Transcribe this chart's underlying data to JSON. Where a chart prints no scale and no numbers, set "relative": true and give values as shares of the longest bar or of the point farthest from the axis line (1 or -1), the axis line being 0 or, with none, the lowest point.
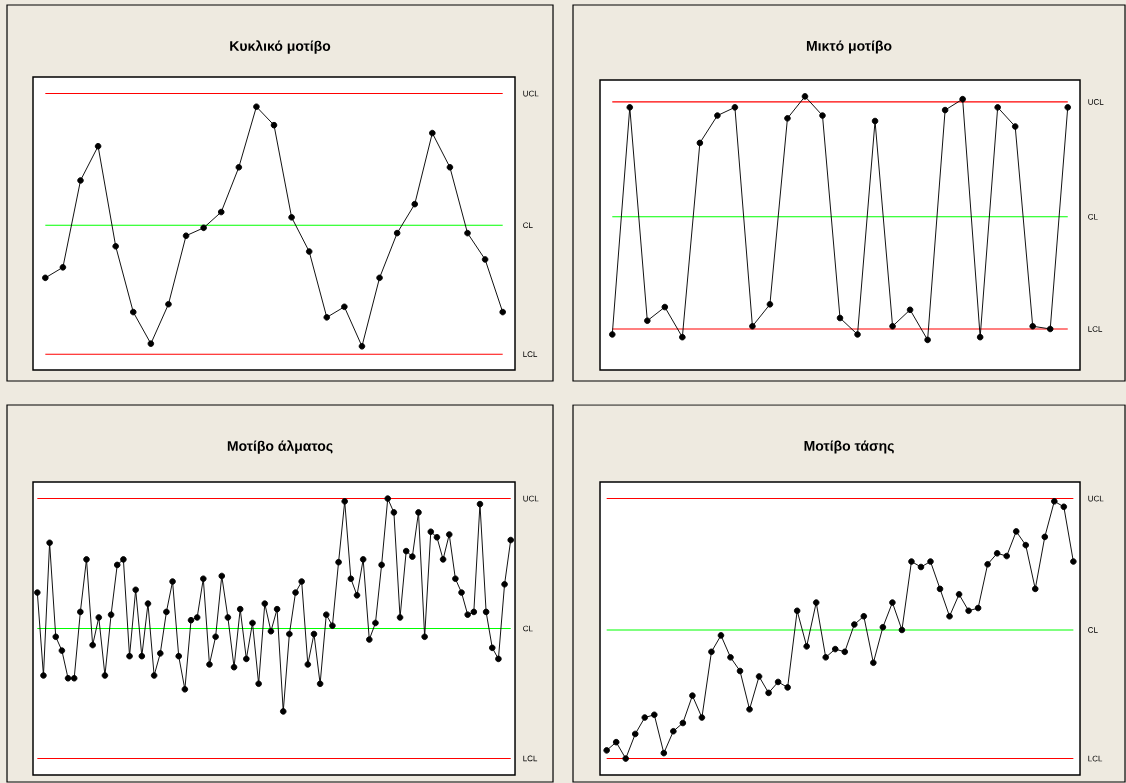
{
  "chart_data": [
    {
      "type": "line",
      "title": "Κυκλικό μοτίβο",
      "relative": true,
      "marker": "circle",
      "color": "#000000",
      "categories": [
        null,
        null,
        null,
        null,
        null,
        null,
        null,
        null,
        null,
        null,
        null,
        null,
        null,
        null,
        null,
        null,
        null,
        null,
        null,
        null,
        null,
        null,
        null,
        null,
        null,
        null,
        null
      ],
      "values": [
        0.35,
        0.39,
        0.72,
        0.85,
        0.47,
        0.22,
        0.1,
        0.25,
        0.51,
        0.54,
        0.6,
        0.77,
        1,
        0.93,
        0.58,
        0.45,
        0.2,
        0.24,
        0.09,
        0.35,
        0.52,
        0.63,
        0.9,
        0.77,
        0.52,
        0.42,
        0.22
      ],
      "ref_lines": [
        {
          "axis": "y",
          "value": 1.05,
          "label": "UCL",
          "color": "#ff0000"
        },
        {
          "axis": "y",
          "value": 0.55,
          "label": "CL",
          "color": "#00ff00"
        },
        {
          "axis": "y",
          "value": 0.06,
          "label": "LCL",
          "color": "#ff0000"
        }
      ]
    },
    {
      "type": "line",
      "title": "Μικτό μοτίβο",
      "relative": true,
      "marker": "circle",
      "color": "#000000",
      "categories": [
        null,
        null,
        null,
        null,
        null,
        null,
        null,
        null,
        null,
        null,
        null,
        null,
        null,
        null,
        null,
        null,
        null,
        null,
        null,
        null,
        null,
        null,
        null,
        null,
        null,
        null,
        null
      ],
      "values": [
        0.13,
        0.96,
        0.18,
        0.23,
        0.12,
        0.83,
        0.93,
        0.96,
        0.16,
        0.24,
        0.92,
        1,
        0.93,
        0.19,
        0.13,
        0.91,
        0.16,
        0.22,
        0.11,
        0.95,
        0.99,
        0.12,
        0.96,
        0.89,
        0.16,
        0.15,
        0.96
      ],
      "ref_lines": [
        {
          "axis": "y",
          "value": 0.98,
          "label": "UCL",
          "color": "#ff0000"
        },
        {
          "axis": "y",
          "value": 0.56,
          "label": "CL",
          "color": "#00ff00"
        },
        {
          "axis": "y",
          "value": 0.15,
          "label": "LCL",
          "color": "#ff0000"
        }
      ]
    },
    {
      "type": "line",
      "title": "Μοτίβο άλματος",
      "relative": true,
      "marker": "circle",
      "color": "#000000",
      "categories": [
        null,
        null,
        null,
        null,
        null,
        null,
        null,
        null,
        null,
        null,
        null,
        null,
        null,
        null,
        null,
        null,
        null,
        null,
        null,
        null,
        null,
        null,
        null,
        null,
        null,
        null,
        null,
        null,
        null,
        null,
        null,
        null,
        null,
        null,
        null,
        null,
        null,
        null,
        null,
        null,
        null,
        null,
        null,
        null,
        null,
        null,
        null,
        null,
        null,
        null,
        null,
        null,
        null,
        null,
        null,
        null,
        null,
        null,
        null,
        null,
        null,
        null,
        null,
        null,
        null,
        null,
        null,
        null,
        null,
        null,
        null,
        null,
        null,
        null,
        null,
        null,
        null,
        null
      ],
      "values": [
        0.66,
        0.36,
        0.84,
        0.5,
        0.45,
        0.35,
        0.35,
        0.59,
        0.78,
        0.47,
        0.57,
        0.36,
        0.58,
        0.76,
        0.78,
        0.43,
        0.67,
        0.43,
        0.62,
        0.36,
        0.44,
        0.59,
        0.7,
        0.43,
        0.31,
        0.56,
        0.57,
        0.71,
        0.4,
        0.5,
        0.72,
        0.57,
        0.39,
        0.6,
        0.42,
        0.55,
        0.33,
        0.62,
        0.52,
        0.6,
        0.23,
        0.51,
        0.66,
        0.7,
        0.4,
        0.51,
        0.33,
        0.58,
        0.54,
        0.77,
        0.99,
        0.71,
        0.65,
        0.78,
        0.49,
        0.55,
        0.76,
        1,
        0.95,
        0.57,
        0.81,
        0.79,
        0.95,
        0.5,
        0.88,
        0.86,
        0.78,
        0.87,
        0.71,
        0.66,
        0.58,
        0.59,
        0.98,
        0.59,
        0.46,
        0.42,
        0.69,
        0.85
      ],
      "ref_lines": [
        {
          "axis": "y",
          "value": 1.0,
          "label": "UCL",
          "color": "#ff0000"
        },
        {
          "axis": "y",
          "value": 0.53,
          "label": "CL",
          "color": "#00ff00"
        },
        {
          "axis": "y",
          "value": 0.06,
          "label": "LCL",
          "color": "#ff0000"
        }
      ]
    },
    {
      "type": "line",
      "title": "Μοτίβο τάσης",
      "relative": true,
      "marker": "circle",
      "color": "#000000",
      "categories": [
        null,
        null,
        null,
        null,
        null,
        null,
        null,
        null,
        null,
        null,
        null,
        null,
        null,
        null,
        null,
        null,
        null,
        null,
        null,
        null,
        null,
        null,
        null,
        null,
        null,
        null,
        null,
        null,
        null,
        null,
        null,
        null,
        null,
        null,
        null,
        null,
        null,
        null,
        null,
        null,
        null,
        null,
        null,
        null,
        null,
        null,
        null,
        null,
        null,
        null
      ],
      "values": [
        0.09,
        0.12,
        0.06,
        0.15,
        0.21,
        0.22,
        0.08,
        0.16,
        0.19,
        0.29,
        0.21,
        0.45,
        0.51,
        0.43,
        0.38,
        0.24,
        0.36,
        0.3,
        0.34,
        0.32,
        0.6,
        0.47,
        0.63,
        0.43,
        0.46,
        0.45,
        0.55,
        0.58,
        0.41,
        0.54,
        0.63,
        0.53,
        0.78,
        0.76,
        0.78,
        0.68,
        0.58,
        0.66,
        0.6,
        0.61,
        0.77,
        0.81,
        0.8,
        0.89,
        0.84,
        0.68,
        0.87,
        1,
        0.98,
        0.78
      ],
      "ref_lines": [
        {
          "axis": "y",
          "value": 1.01,
          "label": "UCL",
          "color": "#ff0000"
        },
        {
          "axis": "y",
          "value": 0.53,
          "label": "CL",
          "color": "#00ff00"
        },
        {
          "axis": "y",
          "value": 0.06,
          "label": "LCL",
          "color": "#ff0000"
        }
      ]
    }
  ]
}
